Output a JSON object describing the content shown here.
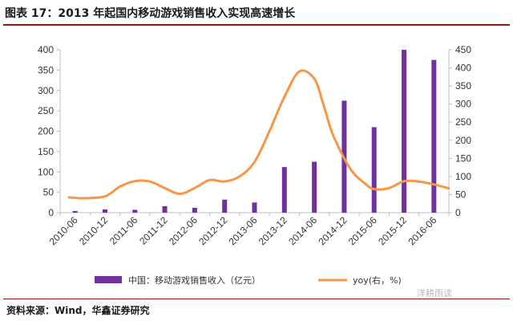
{
  "figure_title": "图表 17：2013 年起国内移动游戏销售收入实现高速增长",
  "source": "资料来源：Wind，华鑫证券研究",
  "watermark": "洋耕雨读",
  "colors": {
    "bar": "#7030a0",
    "line": "#f79646",
    "title_rule": "#8a1a14",
    "axis": "#bfbfbf"
  },
  "chart_data": {
    "type": "bar",
    "categories": [
      "2010-06",
      "2010-12",
      "2011-06",
      "2011-12",
      "2012-06",
      "2012-12",
      "2013-06",
      "2013-12",
      "2014-06",
      "2014-12",
      "2015-06",
      "2015-12",
      "2016-06"
    ],
    "x_tick_labels": [
      "2010-06",
      "2010-12",
      "2011-06",
      "2011-12",
      "2012-06",
      "2012-12",
      "2013-06",
      "2013-12",
      "2014-06",
      "2014-12",
      "2015-06",
      "2015-12",
      "2016-06"
    ],
    "series": [
      {
        "name": "中国：移动游戏销售收入（亿元）",
        "type": "bar",
        "axis": "left",
        "values": [
          4,
          8,
          7,
          16,
          12,
          32,
          25,
          112,
          125,
          275,
          210,
          400,
          375
        ]
      },
      {
        "name": "yoy(右，%)",
        "type": "line",
        "axis": "right",
        "x": [
          -0.2,
          0.3,
          1,
          1.5,
          2,
          2.5,
          3,
          3.5,
          4,
          4.5,
          5,
          5.5,
          6,
          6.5,
          7,
          7.5,
          8,
          8.3,
          8.6,
          9,
          9.3,
          9.7,
          10,
          10.5,
          11,
          11.5,
          12,
          12.5
        ],
        "values": [
          42,
          40,
          45,
          72,
          87,
          86,
          68,
          52,
          68,
          90,
          86,
          100,
          140,
          225,
          320,
          390,
          370,
          300,
          220,
          150,
          110,
          80,
          65,
          68,
          87,
          86,
          78,
          67
        ]
      }
    ],
    "y_left": {
      "ylim": [
        0,
        400
      ],
      "ticks": [
        0,
        50,
        100,
        150,
        200,
        250,
        300,
        350,
        400
      ]
    },
    "y_right": {
      "ylim": [
        0,
        450
      ],
      "ticks": [
        0,
        50,
        100,
        150,
        200,
        250,
        300,
        350,
        400,
        450
      ]
    },
    "legend_position": "bottom",
    "grid": false
  }
}
